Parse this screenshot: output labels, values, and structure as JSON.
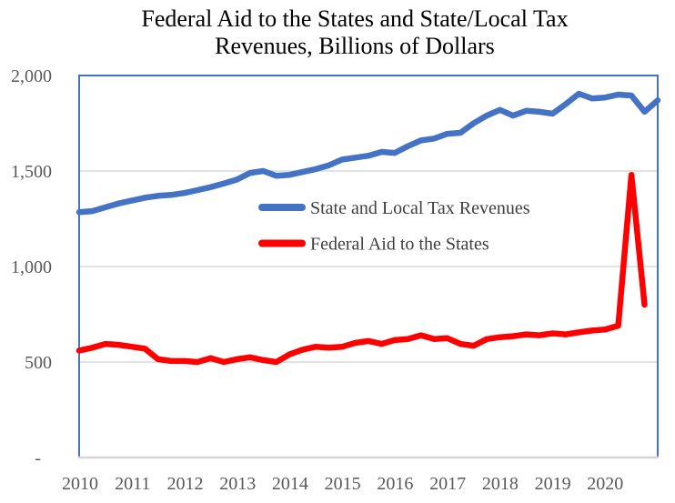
{
  "chart_data": {
    "type": "line",
    "title": "Federal Aid to the States and State/Local Tax Revenues, Billions of Dollars",
    "title_lines": [
      "Federal Aid to the States and State/Local Tax",
      "Revenues, Billions of Dollars"
    ],
    "x_tick_labels": [
      "2010",
      "2011",
      "2012",
      "2013",
      "2014",
      "2015",
      "2016",
      "2017",
      "2018",
      "2019",
      "2020"
    ],
    "y_ticks": [
      {
        "label": "2,000",
        "value": 2000
      },
      {
        "label": "1,500",
        "value": 1500
      },
      {
        "label": "1,000",
        "value": 1000
      },
      {
        "label": "500",
        "value": 500
      },
      {
        "label": "-",
        "value": 0
      }
    ],
    "ylim": [
      0,
      2000
    ],
    "x_range_years": [
      2010,
      2021
    ],
    "x_frequency": "quarterly",
    "grid": "horizontal",
    "legend_position": "inside-middle-left",
    "series": [
      {
        "name": "State and Local Tax Revenues",
        "color": "#4472C4",
        "values": [
          1285,
          1290,
          1310,
          1330,
          1345,
          1360,
          1370,
          1375,
          1385,
          1400,
          1415,
          1435,
          1455,
          1490,
          1500,
          1475,
          1480,
          1495,
          1510,
          1530,
          1560,
          1570,
          1580,
          1600,
          1595,
          1630,
          1660,
          1670,
          1695,
          1700,
          1750,
          1790,
          1820,
          1790,
          1815,
          1810,
          1800,
          1850,
          1905,
          1880,
          1885,
          1900,
          1895,
          1810,
          1870
        ]
      },
      {
        "name": "Federal Aid to the States",
        "color": "#FF0000",
        "values": [
          560,
          575,
          595,
          590,
          580,
          570,
          515,
          505,
          505,
          500,
          520,
          500,
          515,
          525,
          510,
          500,
          540,
          565,
          580,
          575,
          580,
          600,
          610,
          595,
          615,
          620,
          640,
          620,
          625,
          595,
          585,
          620,
          630,
          635,
          645,
          640,
          650,
          645,
          655,
          665,
          670,
          690,
          1480,
          800
        ]
      }
    ],
    "colors": {
      "plot_border": "#4472C4",
      "gridline": "#D9D9D9",
      "axis_line": "#D6D6D6",
      "tick_label": "#595959",
      "legend_text": "#3F3F3F",
      "title": "#000000"
    }
  }
}
